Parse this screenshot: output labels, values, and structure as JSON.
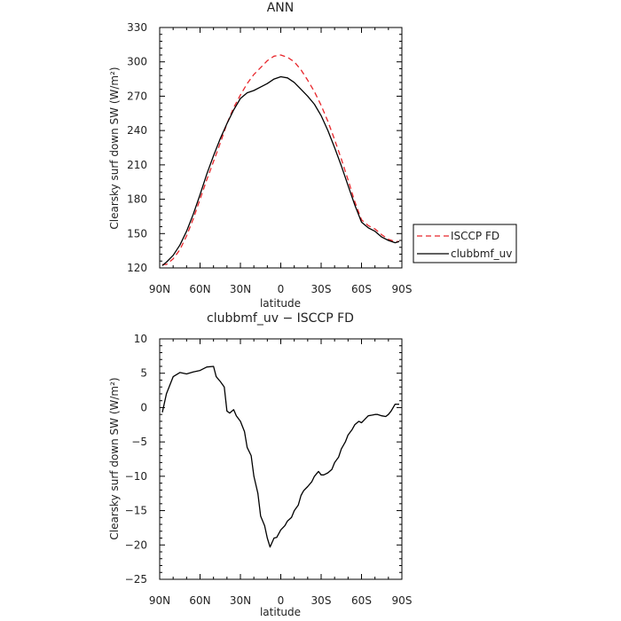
{
  "chart_data": [
    {
      "type": "line",
      "title": "ANN",
      "xlabel": "latitude",
      "ylabel": "Clearsky surf down SW (W/m²)",
      "xlim": [
        -90,
        90
      ],
      "ylim": [
        120,
        330
      ],
      "x_ticks": [
        -90,
        -60,
        -30,
        0,
        30,
        60,
        90
      ],
      "x_tick_labels": [
        "90N",
        "60N",
        "30N",
        "0",
        "30S",
        "60S",
        "90S"
      ],
      "y_ticks": [
        120,
        150,
        180,
        210,
        240,
        270,
        300,
        330
      ],
      "y_tick_labels": [
        "120",
        "150",
        "180",
        "210",
        "240",
        "270",
        "300",
        "330"
      ],
      "legend_position": "right",
      "series": [
        {
          "name": "ISCCP FD",
          "color": "#e8262b",
          "dash": true,
          "x": [
            -88,
            -85,
            -80,
            -75,
            -70,
            -65,
            -60,
            -55,
            -50,
            -45,
            -40,
            -35,
            -30,
            -25,
            -20,
            -15,
            -10,
            -5,
            0,
            5,
            10,
            15,
            20,
            25,
            30,
            35,
            40,
            45,
            50,
            55,
            60,
            65,
            70,
            75,
            80,
            85,
            88
          ],
          "y": [
            123,
            123,
            128,
            136,
            148,
            163,
            180,
            197,
            213,
            229,
            246,
            260,
            271,
            281,
            289,
            295,
            301,
            305,
            306,
            304,
            300,
            293,
            284,
            274,
            262,
            248,
            232,
            215,
            197,
            178,
            162,
            157,
            154,
            149,
            145,
            143,
            143
          ]
        },
        {
          "name": "clubbmf_uv",
          "color": "#000000",
          "dash": false,
          "x": [
            -88,
            -85,
            -80,
            -75,
            -70,
            -65,
            -60,
            -55,
            -50,
            -45,
            -40,
            -35,
            -30,
            -25,
            -20,
            -15,
            -10,
            -5,
            0,
            5,
            10,
            15,
            20,
            25,
            30,
            35,
            40,
            45,
            50,
            55,
            60,
            65,
            70,
            75,
            80,
            85,
            88
          ],
          "y": [
            122,
            125,
            131,
            140,
            152,
            167,
            184,
            202,
            218,
            233,
            246,
            258,
            268,
            273,
            275,
            278,
            281,
            285,
            287,
            286,
            282,
            276,
            270,
            263,
            253,
            240,
            225,
            209,
            192,
            175,
            160,
            155,
            152,
            147,
            144,
            142,
            143
          ]
        }
      ]
    },
    {
      "type": "line",
      "title": "clubbmf_uv − ISCCP FD",
      "xlabel": "latitude",
      "ylabel": "Clearsky surf down SW (W/m²)",
      "xlim": [
        -90,
        90
      ],
      "ylim": [
        -25,
        10
      ],
      "x_ticks": [
        -90,
        -60,
        -30,
        0,
        30,
        60,
        90
      ],
      "x_tick_labels": [
        "90N",
        "60N",
        "30N",
        "0",
        "30S",
        "60S",
        "90S"
      ],
      "y_ticks": [
        -25,
        -20,
        -15,
        -10,
        -5,
        0,
        5,
        10
      ],
      "y_tick_labels": [
        "−25",
        "−20",
        "−15",
        "−10",
        "−5",
        "0",
        "5",
        "10"
      ],
      "series": [
        {
          "color": "#000000",
          "dash": false,
          "x": [
            -88,
            -85,
            -80,
            -75,
            -70,
            -65,
            -60,
            -55,
            -50,
            -48,
            -45,
            -42,
            -40,
            -38,
            -35,
            -33,
            -30,
            -27,
            -25,
            -22,
            -20,
            -17,
            -15,
            -12,
            -10,
            -8,
            -5,
            -3,
            0,
            3,
            5,
            8,
            10,
            13,
            15,
            17,
            20,
            23,
            25,
            28,
            30,
            32,
            35,
            38,
            40,
            43,
            45,
            48,
            50,
            53,
            55,
            58,
            60,
            62,
            65,
            68,
            70,
            72,
            75,
            78,
            80,
            82,
            85,
            88
          ],
          "y": [
            -0.7,
            2,
            4.5,
            5.1,
            4.9,
            5.2,
            5.4,
            5.9,
            6,
            4.5,
            3.8,
            3,
            -0.5,
            -0.8,
            -0.3,
            -1.2,
            -2,
            -3.5,
            -5.8,
            -7,
            -10,
            -12.5,
            -15.8,
            -17.2,
            -19,
            -20.3,
            -19,
            -18.9,
            -17.8,
            -17.2,
            -16.5,
            -16,
            -15,
            -14.2,
            -12.8,
            -12.1,
            -11.5,
            -10.8,
            -10,
            -9.3,
            -9.8,
            -9.8,
            -9.5,
            -9,
            -8,
            -7.2,
            -6,
            -5,
            -4,
            -3.2,
            -2.5,
            -2,
            -2.2,
            -1.8,
            -1.2,
            -1.1,
            -1,
            -1,
            -1.2,
            -1.3,
            -1,
            -0.5,
            0.5,
            0.5
          ]
        }
      ]
    }
  ]
}
